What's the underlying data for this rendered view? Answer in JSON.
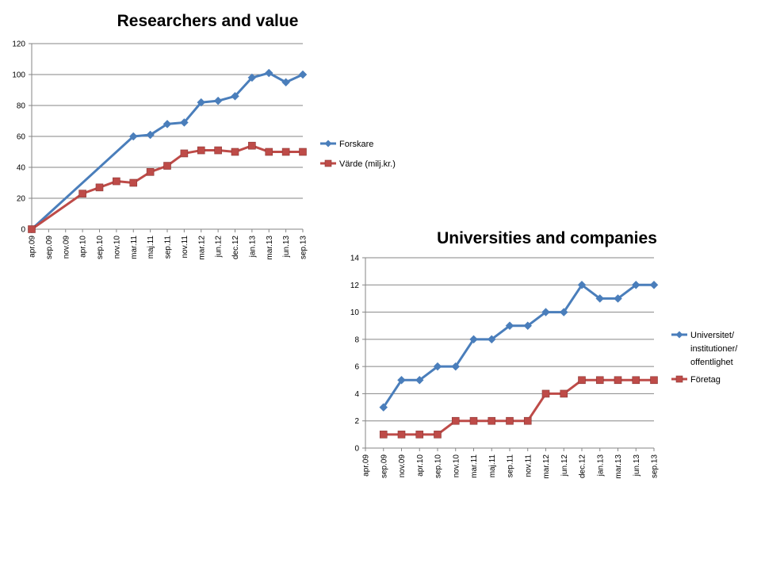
{
  "chart_data": [
    {
      "type": "line",
      "title": "Researchers and value",
      "categories": [
        "apr.09",
        "sep.09",
        "nov.09",
        "apr.10",
        "sep.10",
        "nov.10",
        "mar.11",
        "maj.11",
        "sep.11",
        "nov.11",
        "mar.12",
        "jun.12",
        "dec.12",
        "jan.13",
        "mar.13",
        "jun.13",
        "sep.13"
      ],
      "ylim": [
        0,
        120
      ],
      "yticks": [
        "0",
        "20",
        "40",
        "60",
        "80",
        "100",
        "120"
      ],
      "grid": true,
      "legend": "right",
      "series": [
        {
          "name": "Forskare",
          "color": "#4a7ebb",
          "marker": "diamond",
          "points": [
            [
              0,
              0
            ],
            [
              6,
              60
            ],
            [
              7,
              61
            ],
            [
              8,
              68
            ],
            [
              9,
              69
            ],
            [
              10,
              82
            ],
            [
              11,
              83
            ],
            [
              12,
              86
            ],
            [
              13,
              98
            ],
            [
              14,
              101
            ],
            [
              15,
              95
            ],
            [
              16,
              100
            ]
          ]
        },
        {
          "name": "Värde (milj.kr.)",
          "color": "#be4b48",
          "marker": "square",
          "points": [
            [
              0,
              0
            ],
            [
              3,
              23
            ],
            [
              4,
              27
            ],
            [
              5,
              31
            ],
            [
              6,
              30
            ],
            [
              7,
              37
            ],
            [
              8,
              41
            ],
            [
              9,
              49
            ],
            [
              10,
              51
            ],
            [
              11,
              51
            ],
            [
              12,
              50
            ],
            [
              13,
              54
            ],
            [
              14,
              50
            ],
            [
              15,
              50
            ],
            [
              16,
              50
            ]
          ]
        }
      ]
    },
    {
      "type": "line",
      "title": "Universities and companies",
      "categories": [
        "apr.09",
        "sep.09",
        "nov.09",
        "apr.10",
        "sep.10",
        "nov.10",
        "mar.11",
        "maj.11",
        "sep.11",
        "nov.11",
        "mar.12",
        "jun.12",
        "dec.12",
        "jan.13",
        "mar.13",
        "jun.13",
        "sep.13"
      ],
      "ylim": [
        0,
        14
      ],
      "yticks": [
        "0",
        "2",
        "4",
        "6",
        "8",
        "10",
        "12",
        "14"
      ],
      "grid": true,
      "legend": "right",
      "series": [
        {
          "name": "Universitet/ institutioner/ offentlighet",
          "name_lines": [
            "Universitet/",
            "institutioner/",
            "offentlighet"
          ],
          "color": "#4a7ebb",
          "marker": "diamond",
          "points": [
            [
              1,
              3
            ],
            [
              2,
              5
            ],
            [
              3,
              5
            ],
            [
              4,
              6
            ],
            [
              5,
              6
            ],
            [
              6,
              8
            ],
            [
              7,
              8
            ],
            [
              8,
              9
            ],
            [
              9,
              9
            ],
            [
              10,
              10
            ],
            [
              11,
              10
            ],
            [
              12,
              12
            ],
            [
              13,
              11
            ],
            [
              14,
              11
            ],
            [
              15,
              12
            ],
            [
              16,
              12
            ]
          ]
        },
        {
          "name": "Företag",
          "color": "#be4b48",
          "marker": "square",
          "points": [
            [
              1,
              1
            ],
            [
              2,
              1
            ],
            [
              3,
              1
            ],
            [
              4,
              1
            ],
            [
              5,
              2
            ],
            [
              6,
              2
            ],
            [
              7,
              2
            ],
            [
              8,
              2
            ],
            [
              9,
              2
            ],
            [
              10,
              4
            ],
            [
              11,
              4
            ],
            [
              12,
              5
            ],
            [
              13,
              5
            ],
            [
              14,
              5
            ],
            [
              15,
              5
            ],
            [
              16,
              5
            ]
          ]
        }
      ]
    }
  ]
}
